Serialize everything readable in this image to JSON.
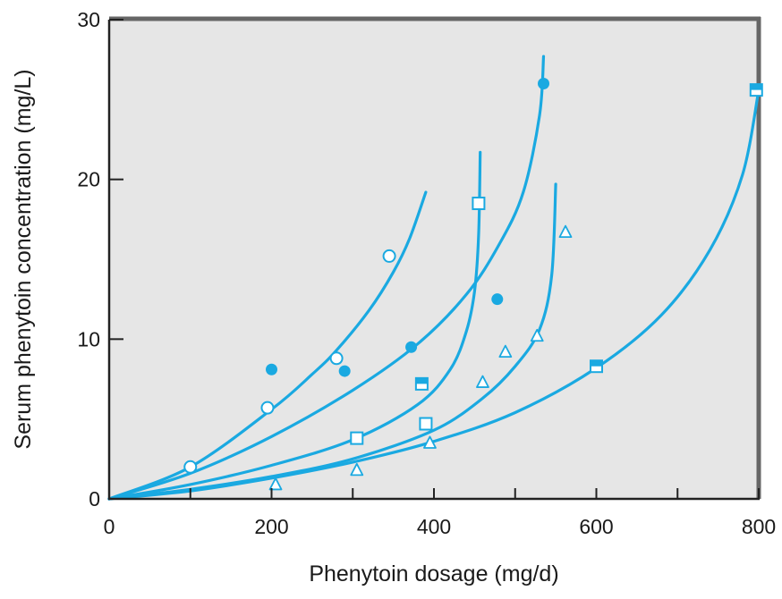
{
  "chart_data": {
    "type": "scatter",
    "xlabel": "Phenytoin dosage (mg/d)",
    "ylabel": "Serum phenytoin concentration (mg/L)",
    "xlim": [
      0,
      800
    ],
    "ylim": [
      0,
      30
    ],
    "x_ticks": [
      "0",
      "200",
      "400",
      "600",
      "800"
    ],
    "y_ticks": [
      "0",
      "10",
      "20",
      "30"
    ],
    "x_minor_ticks": [
      100,
      300,
      500,
      700
    ],
    "grid": false,
    "legend": "none",
    "colors": {
      "accent": "#1aa9e1",
      "plot_bg": "#e6e6e6",
      "frame_dark": "#666666",
      "axis": "#222222"
    },
    "curves": [
      {
        "marker": "open-circle",
        "x": [
          0,
          100,
          200,
          250,
          280,
          320,
          350,
          370,
          390
        ],
        "y": [
          0,
          2.0,
          5.6,
          7.8,
          9.3,
          11.8,
          14.2,
          16.3,
          19.2
        ]
      },
      {
        "marker": "filled-circle",
        "x": [
          0,
          100,
          200,
          300,
          380,
          440,
          480,
          510,
          530,
          535
        ],
        "y": [
          0,
          1.6,
          3.9,
          6.8,
          9.7,
          12.8,
          15.9,
          19.2,
          24.0,
          27.7
        ]
      },
      {
        "marker": "open-square",
        "x": [
          0,
          100,
          200,
          300,
          380,
          420,
          440,
          450,
          455,
          457
        ],
        "y": [
          0,
          0.9,
          2.1,
          3.7,
          5.9,
          8.1,
          10.5,
          13.0,
          16.5,
          21.7
        ]
      },
      {
        "marker": "open-triangle",
        "x": [
          0,
          100,
          200,
          300,
          400,
          460,
          500,
          530,
          545,
          550
        ],
        "y": [
          0,
          0.6,
          1.4,
          2.5,
          4.3,
          6.3,
          8.3,
          10.6,
          14.0,
          19.7
        ]
      },
      {
        "marker": "half-square",
        "x": [
          0,
          100,
          200,
          300,
          400,
          500,
          600,
          680,
          740,
          780,
          800
        ],
        "y": [
          0,
          0.5,
          1.3,
          2.3,
          3.6,
          5.4,
          8.2,
          11.5,
          15.6,
          20.3,
          25.6
        ]
      }
    ],
    "points": [
      {
        "marker": "open-circle",
        "x": 100,
        "y": 2.0
      },
      {
        "marker": "open-circle",
        "x": 195,
        "y": 5.7
      },
      {
        "marker": "open-circle",
        "x": 280,
        "y": 8.8
      },
      {
        "marker": "open-circle",
        "x": 345,
        "y": 15.2
      },
      {
        "marker": "filled-circle",
        "x": 200,
        "y": 8.1
      },
      {
        "marker": "filled-circle",
        "x": 290,
        "y": 8.0
      },
      {
        "marker": "filled-circle",
        "x": 372,
        "y": 9.5
      },
      {
        "marker": "filled-circle",
        "x": 478,
        "y": 12.5
      },
      {
        "marker": "filled-circle",
        "x": 535,
        "y": 26.0
      },
      {
        "marker": "open-square",
        "x": 305,
        "y": 3.8
      },
      {
        "marker": "open-square",
        "x": 390,
        "y": 4.7
      },
      {
        "marker": "open-square",
        "x": 455,
        "y": 18.5
      },
      {
        "marker": "open-triangle",
        "x": 205,
        "y": 0.9
      },
      {
        "marker": "open-triangle",
        "x": 305,
        "y": 1.8
      },
      {
        "marker": "open-triangle",
        "x": 395,
        "y": 3.5
      },
      {
        "marker": "open-triangle",
        "x": 460,
        "y": 7.3
      },
      {
        "marker": "open-triangle",
        "x": 488,
        "y": 9.2
      },
      {
        "marker": "open-triangle",
        "x": 527,
        "y": 10.2
      },
      {
        "marker": "open-triangle",
        "x": 562,
        "y": 16.7
      },
      {
        "marker": "half-square",
        "x": 385,
        "y": 7.2
      },
      {
        "marker": "half-square",
        "x": 600,
        "y": 8.3
      },
      {
        "marker": "half-square",
        "x": 797,
        "y": 25.6
      }
    ]
  }
}
